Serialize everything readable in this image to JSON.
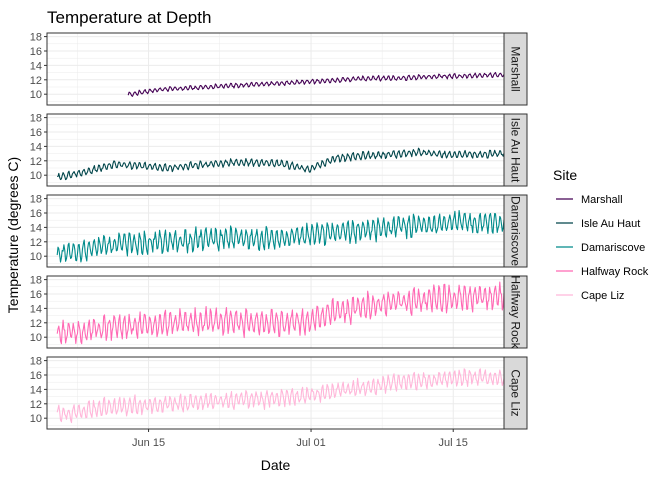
{
  "chart_data": {
    "type": "line",
    "title": "Temperature at Depth",
    "xlabel": "Date",
    "ylabel": "Temperature (degrees C)",
    "x_range": [
      "2019-06-05",
      "2019-07-20"
    ],
    "x_ticks": [
      {
        "date": "2019-06-15",
        "label": "Jun 15"
      },
      {
        "date": "2019-07-01",
        "label": "Jul 01"
      },
      {
        "date": "2019-07-15",
        "label": "Jul 15"
      }
    ],
    "ylim": [
      8.5,
      18.5
    ],
    "y_ticks": [
      10,
      12,
      14,
      16,
      18
    ],
    "grid": true,
    "facet": "rows",
    "legend_title": "Site",
    "legend_position": "right",
    "series": [
      {
        "name": "Marshall",
        "color": "#440154",
        "start": "2019-06-13",
        "end": "2019-07-20",
        "values": [
          9.9,
          10.6,
          10.8,
          11.0,
          11.2,
          11.4,
          11.6,
          11.8,
          12.0,
          12.2,
          12.2,
          12.4,
          12.5,
          12.6,
          12.7
        ]
      },
      {
        "name": "Isle Au Haut",
        "color": "#00454a",
        "start": "2019-06-06",
        "end": "2019-07-20",
        "values": [
          9.7,
          10.4,
          11.5,
          11.3,
          11.0,
          11.4,
          11.7,
          11.8,
          11.6,
          10.8,
          12.4,
          12.7,
          12.9,
          13.2,
          12.8,
          12.9,
          13.0
        ]
      },
      {
        "name": "Damariscove",
        "color": "#008b8b",
        "start": "2019-06-06",
        "end": "2019-07-20",
        "values": [
          10.2,
          11.0,
          11.5,
          11.8,
          12.0,
          12.3,
          12.5,
          12.3,
          12.6,
          12.9,
          13.3,
          13.7,
          14.0,
          14.3,
          14.6,
          14.7,
          14.7
        ]
      },
      {
        "name": "Halfway Rock",
        "color": "#ff69b4",
        "start": "2019-06-06",
        "end": "2019-07-20",
        "values": [
          10.4,
          10.9,
          11.4,
          11.6,
          11.9,
          12.1,
          12.3,
          12.0,
          12.1,
          12.3,
          13.5,
          14.2,
          14.8,
          15.2,
          15.5,
          15.6,
          15.7
        ]
      },
      {
        "name": "Cape Liz",
        "color": "#ffb6d9",
        "start": "2019-06-06",
        "end": "2019-07-20",
        "values": [
          10.5,
          11.1,
          11.6,
          11.8,
          12.0,
          12.2,
          12.5,
          12.6,
          12.8,
          13.2,
          13.7,
          14.3,
          14.9,
          15.2,
          15.5,
          15.7,
          15.6
        ]
      }
    ]
  }
}
